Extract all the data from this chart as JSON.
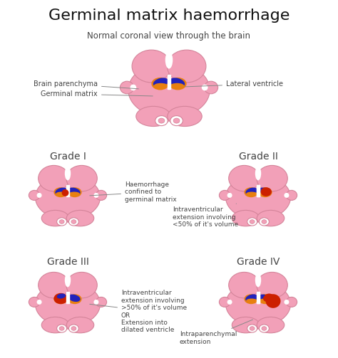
{
  "title": "Germinal matrix haemorrhage",
  "subtitle": "Normal coronal view through the brain",
  "brain_pink": "#F2A0B8",
  "brain_edge": "#D4849A",
  "ventricle_blue": "#2222BB",
  "germinal_orange": "#E88010",
  "hemorrhage_red": "#CC2000",
  "white": "#FFFFFF",
  "label_color": "#444444",
  "title_color": "#111111",
  "background": "#FFFFFF",
  "grades": [
    "Grade I",
    "Grade II",
    "Grade III",
    "Grade IV"
  ],
  "grade_notes": [
    "Haemorrhage\nconfined to\ngerminal matrix",
    "Intraventricular\nextension involving\n<50% of it's volume",
    "Intraventricular\nextension involving\n>50% of it's volume\nOR\nExtension into\ndilated ventricle",
    "Intraparenchymal\nextension"
  ],
  "top_labels": {
    "brain_parenchyma": "Brain parenchyma",
    "germinal_matrix": "Germinal matrix",
    "lateral_ventricle": "Lateral ventricle"
  }
}
